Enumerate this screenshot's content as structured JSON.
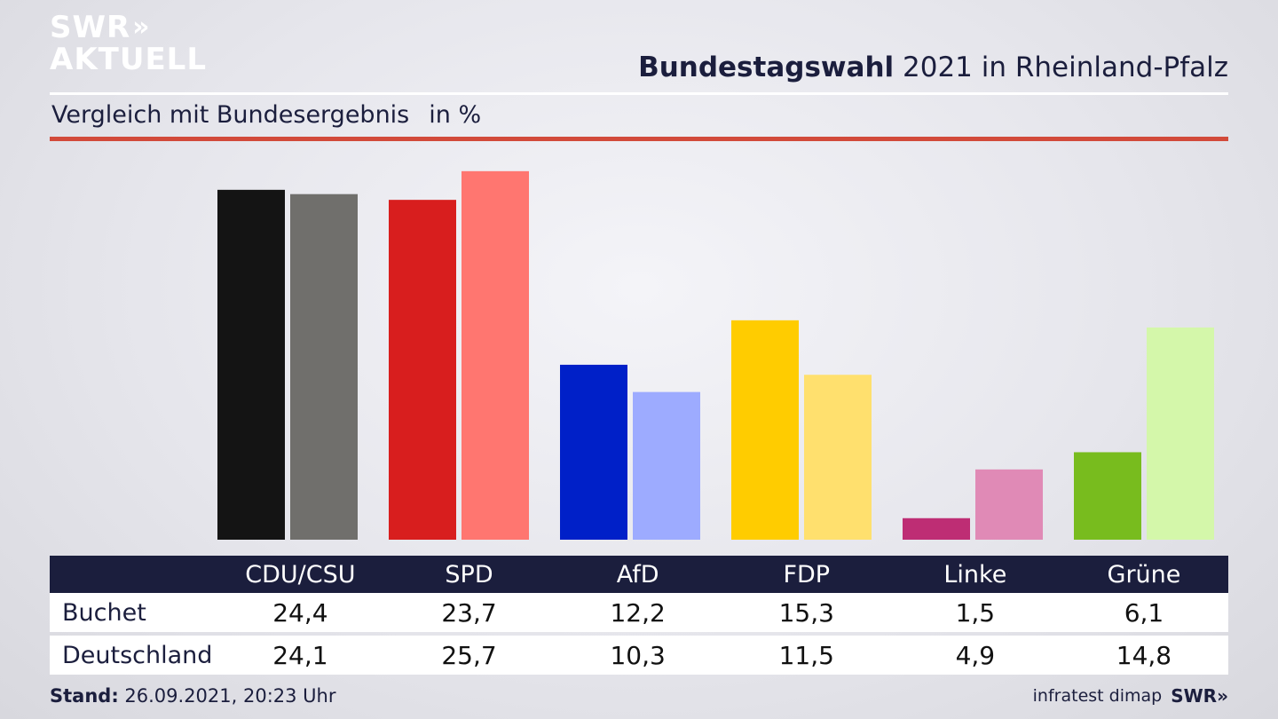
{
  "logo": {
    "line1": "SWR",
    "line2": "AKTUELL",
    "chevrons": "»"
  },
  "header": {
    "title_bold": "Bundestagswahl",
    "title_rest": " 2021 in Rheinland-Pfalz"
  },
  "subtitle": {
    "text": "Vergleich mit Bundesergebnis",
    "unit": "in %"
  },
  "chart_data": {
    "type": "bar",
    "categories": [
      "CDU/CSU",
      "SPD",
      "AfD",
      "FDP",
      "Linke",
      "Grüne"
    ],
    "series": [
      {
        "name": "Buchet",
        "values": [
          24.4,
          23.7,
          12.2,
          15.3,
          1.5,
          6.1
        ]
      },
      {
        "name": "Deutschland",
        "values": [
          24.1,
          25.7,
          10.3,
          11.5,
          4.9,
          14.8
        ]
      }
    ],
    "colors": {
      "Buchet": [
        "#141414",
        "#d81e1e",
        "#0020c8",
        "#ffcc00",
        "#be2d74",
        "#78bc1e"
      ],
      "Deutschland": [
        "#706f6c",
        "#ff7670",
        "#9dabff",
        "#ffe06e",
        "#e08ab6",
        "#d4f7aa"
      ]
    },
    "ylim": [
      0,
      26
    ],
    "grid": false,
    "legend": "table-below"
  },
  "footer": {
    "stand_label": "Stand:",
    "stand_value": " 26.09.2021, 20:23 Uhr",
    "source": "infratest dimap",
    "brand": "SWR»"
  }
}
